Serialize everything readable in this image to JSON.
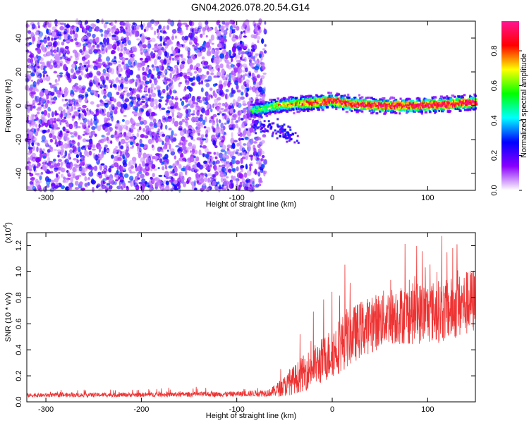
{
  "title": "GN04.2026.078.20.54.G14",
  "chart_data": [
    {
      "type": "heatmap",
      "name": "spectrogram",
      "xlabel": "Height of straight line (km)",
      "ylabel": "Frequency (Hz)",
      "xlim": [
        -320,
        150
      ],
      "ylim": [
        -50,
        50
      ],
      "xticks": [
        -300,
        -200,
        -100,
        0,
        100
      ],
      "yticks": [
        -40,
        -20,
        0,
        20,
        40
      ],
      "noise_region_x": [
        -320,
        -73
      ],
      "signal_band": {
        "x_start": -85,
        "x_end": 150,
        "center_freq": 0.5,
        "ridge_points": [
          {
            "x": -85,
            "f": -3
          },
          {
            "x": -75,
            "f": -2
          },
          {
            "x": -60,
            "f": 0
          },
          {
            "x": -40,
            "f": 1
          },
          {
            "x": -20,
            "f": 1.5
          },
          {
            "x": 0,
            "f": 3
          },
          {
            "x": 20,
            "f": 1
          },
          {
            "x": 50,
            "f": 0
          },
          {
            "x": 80,
            "f": 0
          },
          {
            "x": 110,
            "f": 0.5
          },
          {
            "x": 150,
            "f": 2
          }
        ],
        "tail": [
          {
            "x": -80,
            "f": -12
          },
          {
            "x": -55,
            "f": -14
          },
          {
            "x": -40,
            "f": -18
          }
        ]
      },
      "colorbar": {
        "label": "Normalized spectral amplitude",
        "range": [
          0,
          0.97
        ],
        "ticks": [
          0.0,
          0.2,
          0.4,
          0.6,
          0.8
        ],
        "tick_labels": [
          "0.0",
          "0.2",
          "0.4",
          "0.6",
          "0.8"
        ],
        "colors": [
          "#ffffff",
          "#8a00ff",
          "#0000ff",
          "#00ffff",
          "#00ff00",
          "#ffff00",
          "#ff0000",
          "#ff1493"
        ]
      }
    },
    {
      "type": "line",
      "name": "snr",
      "xlabel": "Height of straight line (km)",
      "ylabel": "SNR (10 * v/v)",
      "y_multiplier": "(x10",
      "y_multiplier_exp": "4",
      "y_multiplier_close": ")",
      "xlim": [
        -320,
        150
      ],
      "ylim": [
        0,
        1.3
      ],
      "xticks": [
        -300,
        -200,
        -100,
        0,
        100
      ],
      "yticks": [
        0.0,
        0.2,
        0.4,
        0.6,
        0.8,
        1.0,
        1.2
      ],
      "ytick_labels": [
        "0.0",
        "0.2",
        "0.4",
        "0.6",
        "0.8",
        "1.0",
        "1.2"
      ],
      "color": "#ee3333",
      "envelope": [
        {
          "x": -320,
          "mean": 0.05,
          "spread": 0.015
        },
        {
          "x": -200,
          "mean": 0.055,
          "spread": 0.017
        },
        {
          "x": -100,
          "mean": 0.06,
          "spread": 0.02
        },
        {
          "x": -65,
          "mean": 0.07,
          "spread": 0.03
        },
        {
          "x": -50,
          "mean": 0.12,
          "spread": 0.08
        },
        {
          "x": -30,
          "mean": 0.22,
          "spread": 0.14
        },
        {
          "x": -10,
          "mean": 0.32,
          "spread": 0.18
        },
        {
          "x": 10,
          "mean": 0.45,
          "spread": 0.22
        },
        {
          "x": 30,
          "mean": 0.56,
          "spread": 0.22
        },
        {
          "x": 60,
          "mean": 0.66,
          "spread": 0.22
        },
        {
          "x": 90,
          "mean": 0.68,
          "spread": 0.24
        },
        {
          "x": 120,
          "mean": 0.7,
          "spread": 0.24
        },
        {
          "x": 150,
          "mean": 0.78,
          "spread": 0.26
        }
      ]
    }
  ]
}
